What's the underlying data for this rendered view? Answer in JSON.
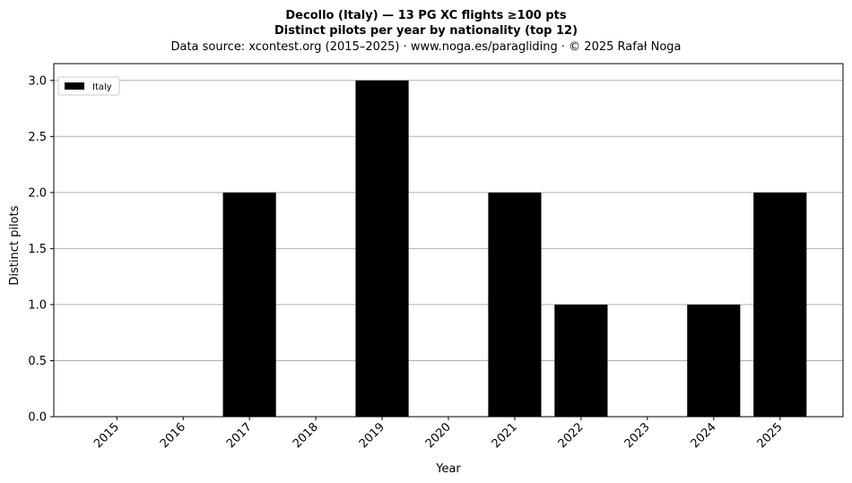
{
  "chart_data": {
    "type": "bar",
    "title_line1": "Decollo (Italy)  —  13 PG XC flights ≥100 pts",
    "title_line2": "Distinct pilots per year by nationality (top 12)",
    "subtitle": "Data source: xcontest.org (2015–2025)  ·  www.noga.es/paragliding  ·  © 2025 Rafał Noga",
    "xlabel": "Year",
    "ylabel": "Distinct pilots",
    "categories": [
      "2015",
      "2016",
      "2017",
      "2018",
      "2019",
      "2020",
      "2021",
      "2022",
      "2023",
      "2024",
      "2025"
    ],
    "series": [
      {
        "name": "Italy",
        "values": [
          0,
          0,
          2,
          0,
          3,
          0,
          2,
          1,
          0,
          1,
          2
        ],
        "color": "#000000"
      }
    ],
    "ylim": [
      0,
      3.15
    ],
    "yticks": [
      0.0,
      0.5,
      1.0,
      1.5,
      2.0,
      2.5,
      3.0
    ],
    "ytick_labels": [
      "0.0",
      "0.5",
      "1.0",
      "1.5",
      "2.0",
      "2.5",
      "3.0"
    ],
    "grid": "y",
    "legend_position": "upper-left",
    "grid_color": "#b0b0b0"
  }
}
